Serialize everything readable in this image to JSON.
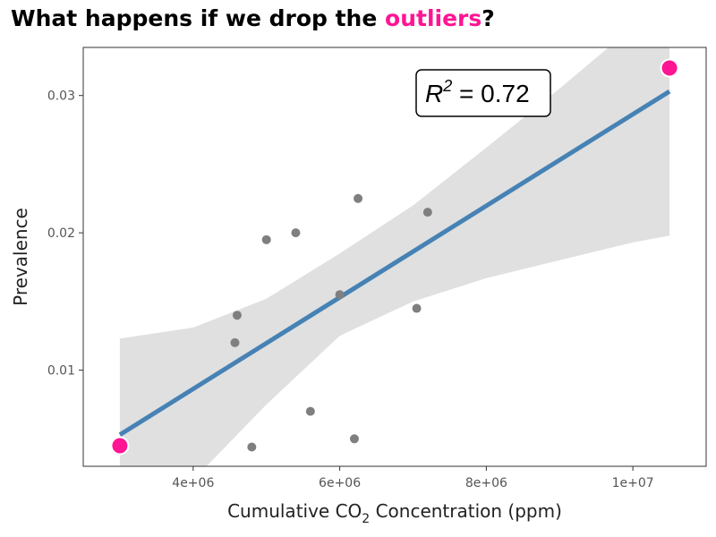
{
  "title": {
    "prefix": "What happens if we drop the ",
    "highlight": "outliers",
    "suffix": "?",
    "highlight_color": "#ff1493"
  },
  "chart_data": {
    "type": "scatter",
    "xlabel": "Cumulative CO₂ Concentration (ppm)",
    "xlabel_parts": {
      "pre": "Cumulative CO",
      "sub": "2",
      "post": " Concentration (ppm)"
    },
    "ylabel": "Prevalence",
    "xlim": [
      2500000,
      11000000
    ],
    "ylim": [
      0.003,
      0.0335
    ],
    "x_ticks": [
      {
        "value": 4000000,
        "label": "4e+06"
      },
      {
        "value": 6000000,
        "label": "6e+06"
      },
      {
        "value": 8000000,
        "label": "8e+06"
      },
      {
        "value": 10000000,
        "label": "1e+07"
      }
    ],
    "y_ticks": [
      {
        "value": 0.01,
        "label": "0.01"
      },
      {
        "value": 0.02,
        "label": "0.02"
      },
      {
        "value": 0.03,
        "label": "0.03"
      }
    ],
    "points": [
      {
        "x": 4600000,
        "y": 0.014
      },
      {
        "x": 4570000,
        "y": 0.012
      },
      {
        "x": 4800000,
        "y": 0.0044
      },
      {
        "x": 5000000,
        "y": 0.0195
      },
      {
        "x": 5400000,
        "y": 0.02
      },
      {
        "x": 5600000,
        "y": 0.007
      },
      {
        "x": 6000000,
        "y": 0.0155
      },
      {
        "x": 6200000,
        "y": 0.005
      },
      {
        "x": 6250000,
        "y": 0.0225
      },
      {
        "x": 7050000,
        "y": 0.0145
      },
      {
        "x": 7200000,
        "y": 0.0215
      }
    ],
    "outliers": [
      {
        "x": 3000000,
        "y": 0.0045
      },
      {
        "x": 10500000,
        "y": 0.032
      }
    ],
    "fit_line": {
      "x": [
        3000000,
        10500000
      ],
      "y": [
        0.0053,
        0.0303
      ]
    },
    "confidence_band": {
      "x": [
        3000000,
        4000000,
        5000000,
        6000000,
        7000000,
        8000000,
        9000000,
        10000000,
        10500000
      ],
      "upper": [
        0.0123,
        0.0131,
        0.0152,
        0.0185,
        0.022,
        0.0262,
        0.0305,
        0.035,
        0.0385
      ],
      "lower": [
        -0.002,
        0.002,
        0.0075,
        0.0125,
        0.015,
        0.0167,
        0.018,
        0.0193,
        0.0198
      ]
    },
    "annotation": {
      "r2_label": "R",
      "r2_sup": "2",
      "r2_value": " = 0.72"
    },
    "colors": {
      "point": "#7f7f7f",
      "outlier": "#ff1493",
      "line": "#4682b4",
      "band": "#e0e0e0"
    },
    "grid": false
  }
}
